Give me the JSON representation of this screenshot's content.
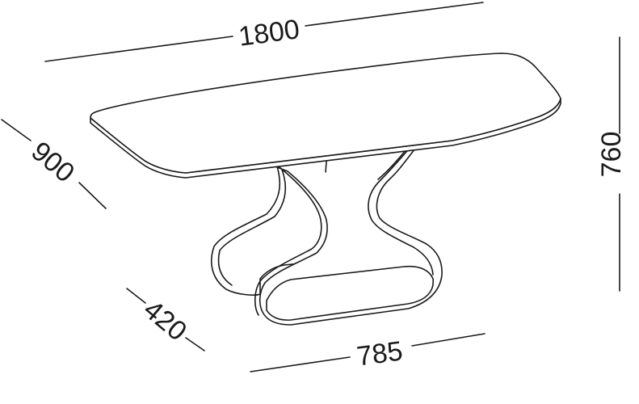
{
  "dimensions": {
    "length": "1800",
    "width": "900",
    "height": "760",
    "base_depth": "420",
    "base_length": "785"
  },
  "colors": {
    "line": "#1a1a1a",
    "background": "#ffffff"
  }
}
